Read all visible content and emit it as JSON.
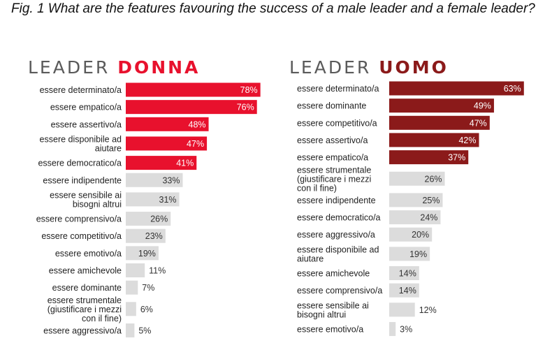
{
  "caption": "Fig. 1 What are the features favouring the success of a male leader and a female leader?",
  "colors": {
    "left_accent": "#e8112d",
    "right_accent": "#8b1a1a",
    "gray_bar": "#dcdcdc",
    "title_gray": "#5a5a5a"
  },
  "chart_data": [
    {
      "type": "bar",
      "orientation": "horizontal",
      "title_part1": "LEADER",
      "title_part2": "DONNA",
      "highlight_count": 5,
      "value_suffix": "%",
      "categories": [
        [
          "essere determinato/a"
        ],
        [
          "essere empatico/a"
        ],
        [
          "essere assertivo/a"
        ],
        [
          "essere disponibile ad",
          "aiutare"
        ],
        [
          "essere democratico/a"
        ],
        [
          "essere indipendente"
        ],
        [
          "essere sensibile ai",
          "bisogni altrui"
        ],
        [
          "essere comprensivo/a"
        ],
        [
          "essere competitivo/a"
        ],
        [
          "essere emotivo/a"
        ],
        [
          "essere amichevole"
        ],
        [
          "essere dominante"
        ],
        [
          "essere strumentale",
          "(giustificare i mezzi",
          "con il fine)"
        ],
        [
          "essere aggressivo/a"
        ]
      ],
      "values": [
        78,
        76,
        48,
        47,
        41,
        33,
        31,
        26,
        23,
        19,
        11,
        7,
        6,
        5
      ]
    },
    {
      "type": "bar",
      "orientation": "horizontal",
      "title_part1": "LEADER",
      "title_part2": "UOMO",
      "highlight_count": 5,
      "value_suffix": "%",
      "categories": [
        [
          "essere determinato/a"
        ],
        [
          "essere dominante"
        ],
        [
          "essere competitivo/a"
        ],
        [
          "essere assertivo/a"
        ],
        [
          "essere empatico/a"
        ],
        [
          "essere strumentale",
          "(giustificare i mezzi",
          "con il fine)"
        ],
        [
          "essere indipendente"
        ],
        [
          "essere democratico/a"
        ],
        [
          "essere aggressivo/a"
        ],
        [
          "essere disponibile ad",
          "aiutare"
        ],
        [
          "essere amichevole"
        ],
        [
          "essere comprensivo/a"
        ],
        [
          "essere sensibile ai",
          "bisogni altrui"
        ],
        [
          "essere emotivo/a"
        ]
      ],
      "values": [
        63,
        49,
        47,
        42,
        37,
        26,
        25,
        24,
        20,
        19,
        14,
        14,
        12,
        3
      ]
    }
  ]
}
